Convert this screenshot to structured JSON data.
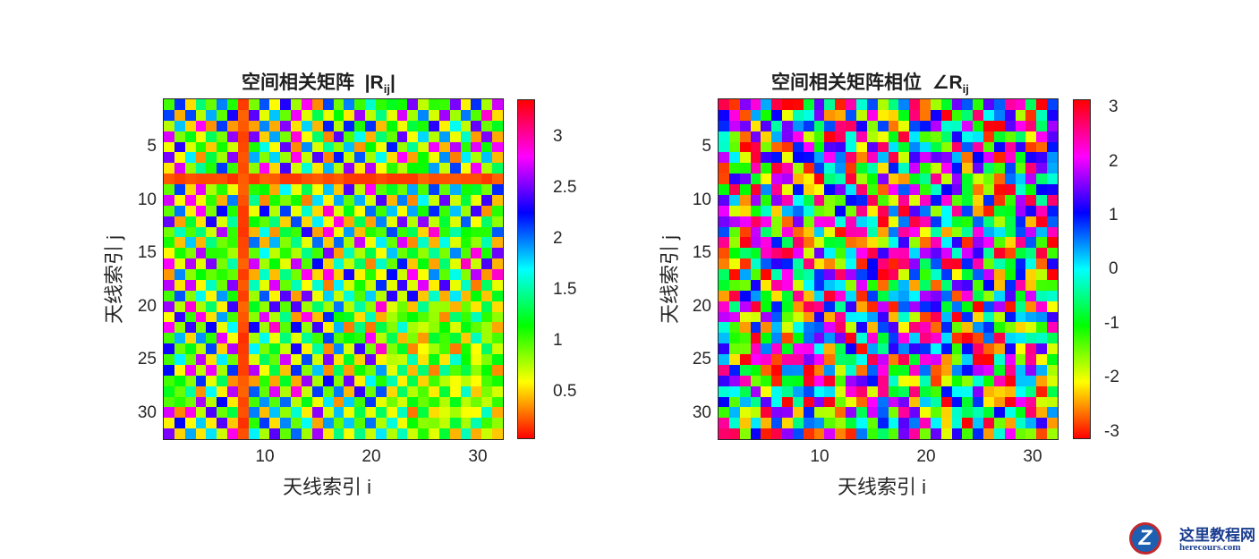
{
  "chart_data": [
    {
      "type": "heatmap",
      "title": "空间相关矩阵 |R_ij|",
      "title_main": "空间相关矩阵",
      "title_sym": "|R",
      "title_sub": "ij",
      "title_end": "|",
      "xlabel": "天线索引 i",
      "ylabel": "天线索引 j",
      "xlim": [
        0.5,
        32.5
      ],
      "ylim": [
        0.5,
        32.5
      ],
      "y_reversed": true,
      "x_ticks": [
        10,
        20,
        30
      ],
      "y_ticks": [
        5,
        10,
        15,
        20,
        25,
        30
      ],
      "colormap": "hsv",
      "clim": [
        0.0,
        3.33
      ],
      "colorbar_ticks": [
        0.5,
        1,
        1.5,
        2,
        2.5,
        3
      ],
      "colorbar_tick_labels": [
        "0.5",
        "1",
        "1.5",
        "2",
        "2.5",
        "3"
      ],
      "size": [
        32,
        32
      ],
      "notes": "Magnitude matrix; checkerboard pattern, strong low-value (red) cross at row/column 8, lower greenish values in lower-right block."
    },
    {
      "type": "heatmap",
      "title": "空间相关矩阵相位 ∠R_ij",
      "title_main": "空间相关矩阵相位",
      "title_sym": "∠R",
      "title_sub": "ij",
      "title_end": "",
      "xlabel": "天线索引 i",
      "ylabel": "天线索引 j",
      "xlim": [
        0.5,
        32.5
      ],
      "ylim": [
        0.5,
        32.5
      ],
      "y_reversed": true,
      "x_ticks": [
        10,
        20,
        30
      ],
      "y_ticks": [
        5,
        10,
        15,
        20,
        25,
        30
      ],
      "colormap": "hsv",
      "clim": [
        -3.1416,
        3.1416
      ],
      "colorbar_ticks": [
        3,
        2,
        1,
        0,
        -1,
        -2,
        -3
      ],
      "colorbar_tick_labels": [
        "3",
        "2",
        "1",
        "0",
        "-1",
        "-2",
        "-3"
      ],
      "size": [
        32,
        32
      ],
      "notes": "Phase matrix; pseudo-random phases spanning full -π..π range."
    }
  ],
  "plots": {
    "left": {
      "title_main": "空间相关矩阵",
      "title_sym": "|R",
      "title_sub": "ij",
      "title_end": "|",
      "xlabel": "天线索引 i",
      "ylabel": "天线索引 j",
      "xticks": [
        "10",
        "20",
        "30"
      ],
      "yticks": [
        "5",
        "10",
        "15",
        "20",
        "25",
        "30"
      ],
      "cbticks": [
        "3",
        "2.5",
        "2",
        "1.5",
        "1",
        "0.5"
      ]
    },
    "right": {
      "title_main": "空间相关矩阵相位",
      "title_sym": "∠R",
      "title_sub": "ij",
      "xlabel": "天线索引 i",
      "ylabel": "天线索引 j",
      "xticks": [
        "10",
        "20",
        "30"
      ],
      "yticks": [
        "5",
        "10",
        "15",
        "20",
        "25",
        "30"
      ],
      "cbticks": [
        "3",
        "2",
        "1",
        "0",
        "-1",
        "-2",
        "-3"
      ]
    }
  },
  "watermark": {
    "logo_letter": "Z",
    "cn": "这里教程网",
    "en": "herecours.com"
  }
}
